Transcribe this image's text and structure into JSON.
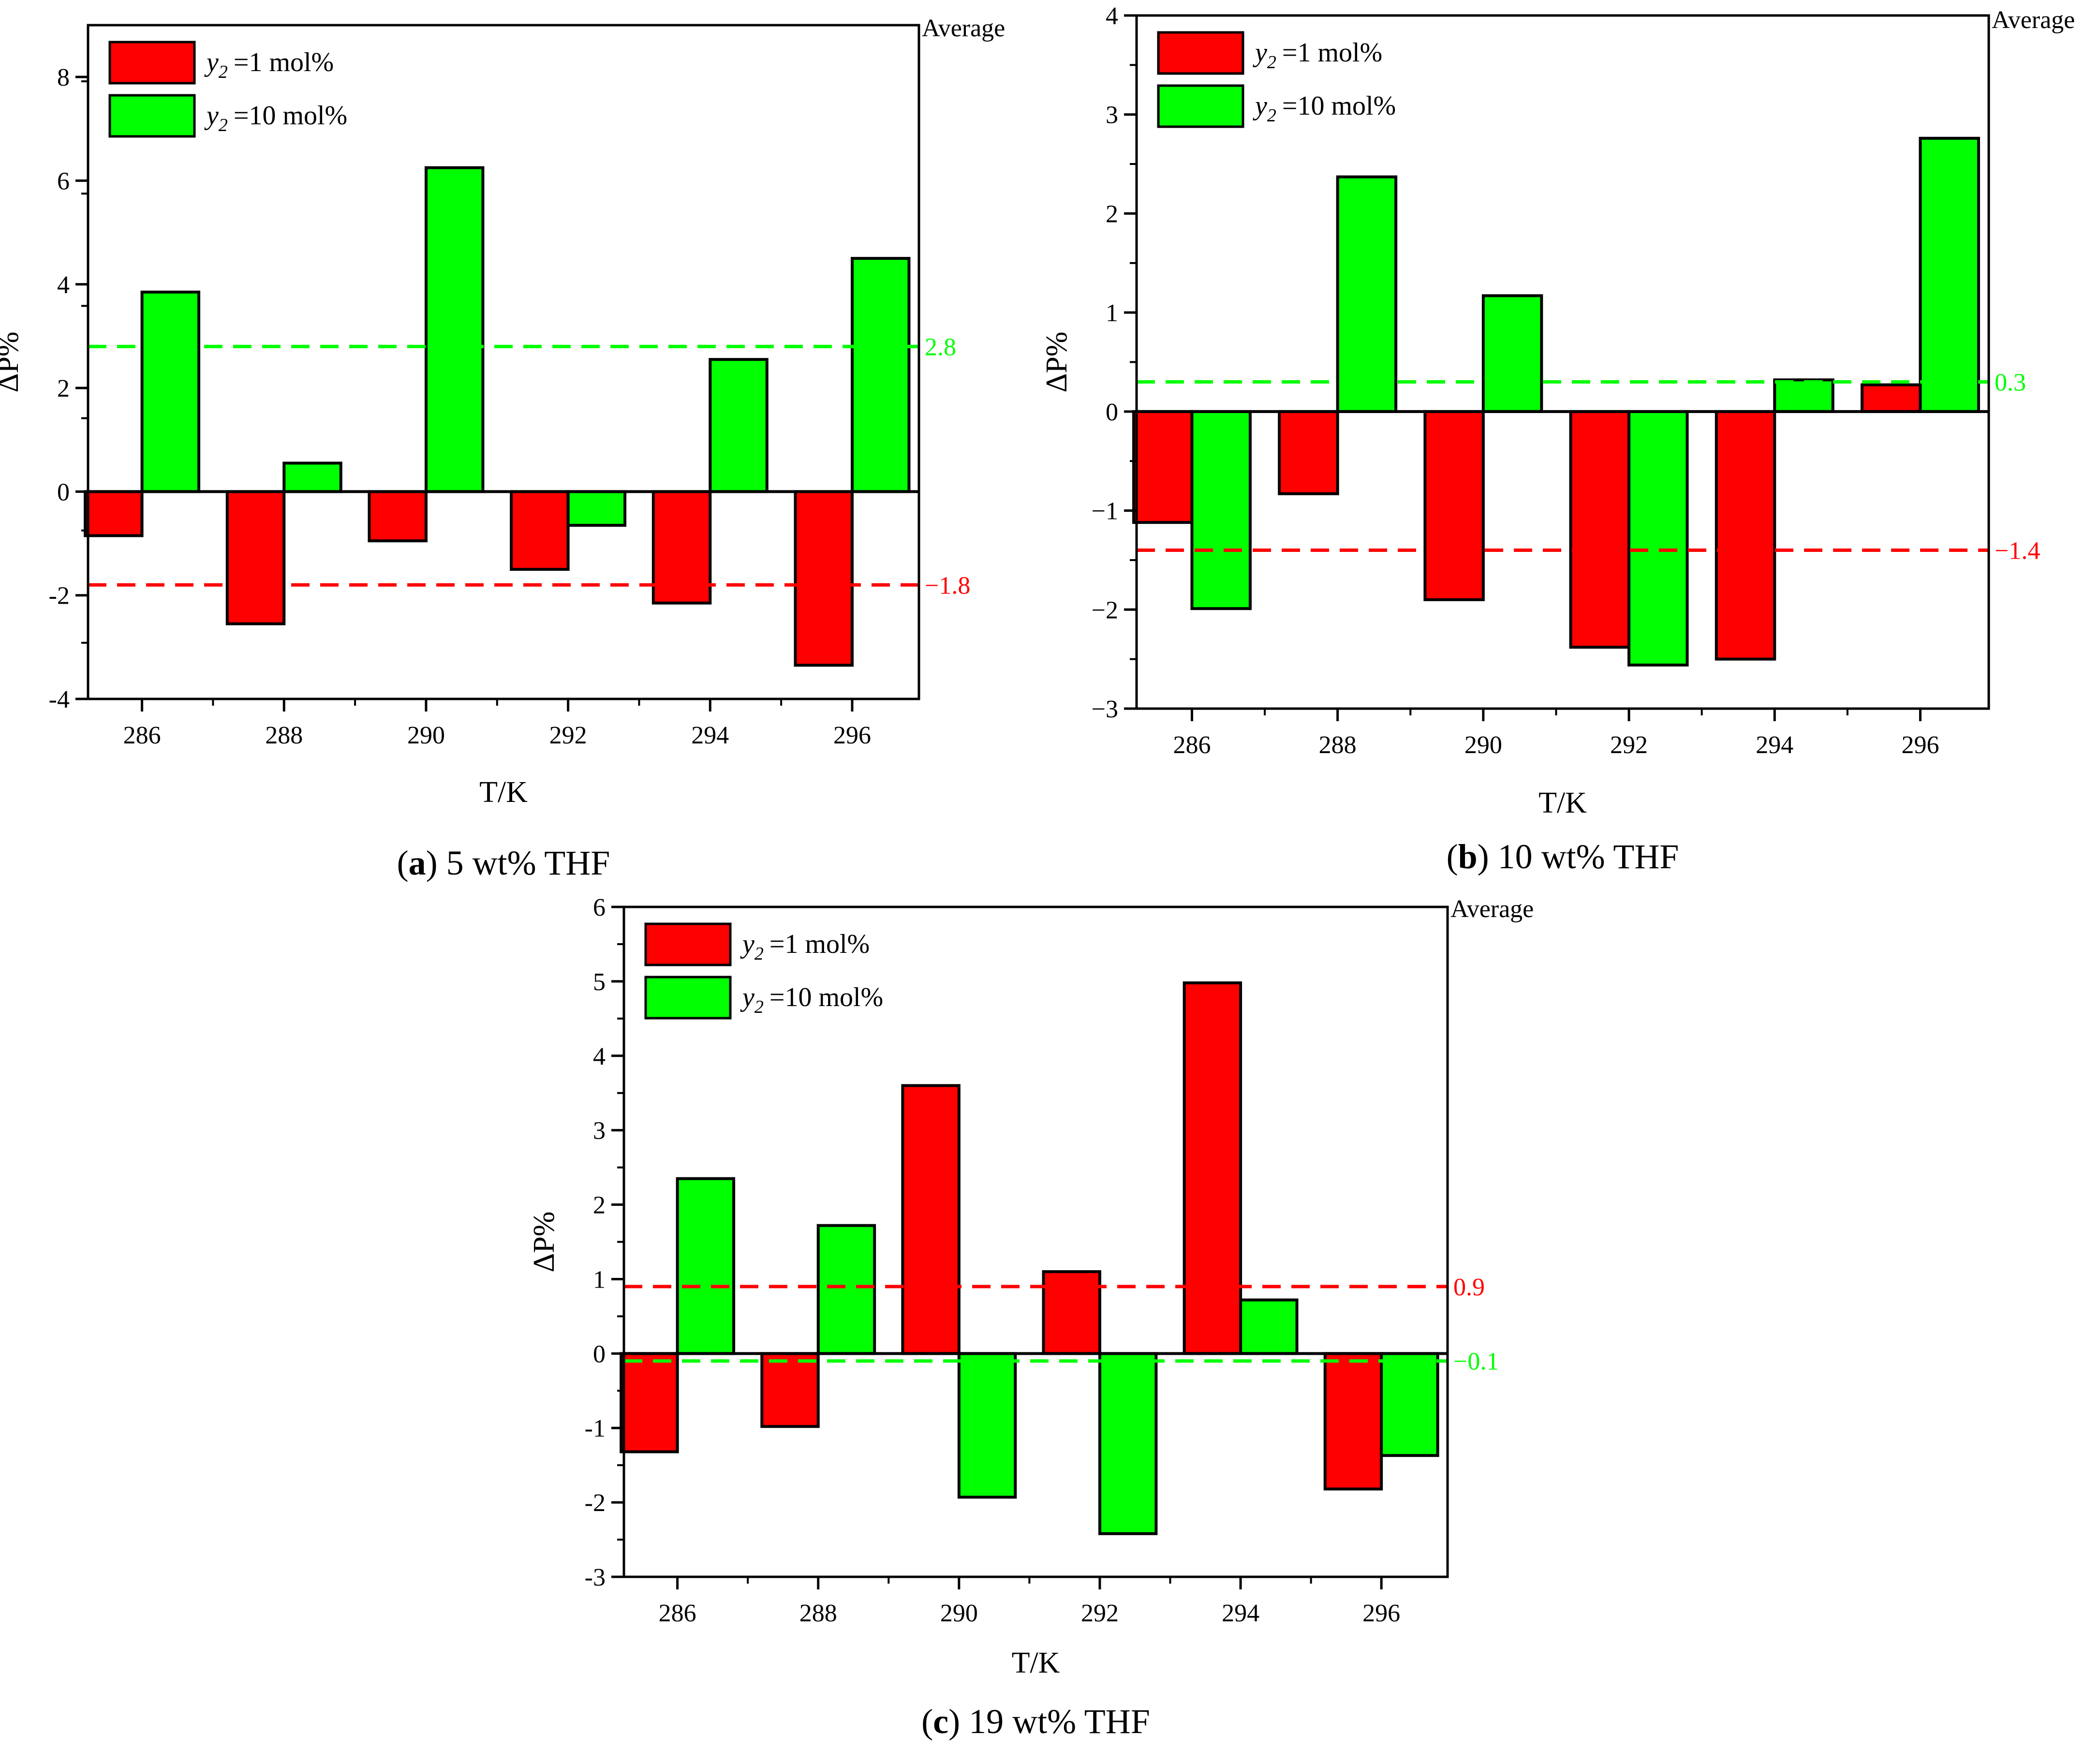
{
  "legend": {
    "series1": "=1 mol%",
    "series2": "=10 mol%",
    "symbol": "y",
    "subscript": "2"
  },
  "colors": {
    "series1": "#ff0000",
    "series2": "#00ff00"
  },
  "chart_data": [
    {
      "type": "bar",
      "caption_letter": "a",
      "caption_rest": " 5 wt% THF",
      "xlabel": "T/K",
      "ylabel": "ΔP%",
      "average_label": "Average",
      "categories": [
        "286",
        "288",
        "290",
        "292",
        "294",
        "296"
      ],
      "ylim": [
        -4,
        9
      ],
      "yticks": [
        "-4",
        "-2",
        "0",
        "2",
        "4",
        "6",
        "8"
      ],
      "legend_placement": "top-left",
      "series": [
        {
          "name": "y2 =1 mol%",
          "values": [
            -0.85,
            -2.55,
            -0.95,
            -1.5,
            -2.15,
            -3.35
          ]
        },
        {
          "name": "y2 =10 mol%",
          "values": [
            3.85,
            0.55,
            6.25,
            -0.65,
            2.55,
            4.5
          ]
        }
      ],
      "averages": [
        {
          "label": "2.8",
          "value": 2.8
        },
        {
          "label": "−1.8",
          "value": -1.8
        }
      ]
    },
    {
      "type": "bar",
      "caption_letter": "b",
      "caption_rest": " 10 wt% THF",
      "xlabel": "T/K",
      "ylabel": "ΔP%",
      "average_label": "Average",
      "categories": [
        "286",
        "288",
        "290",
        "292",
        "294",
        "296"
      ],
      "ylim": [
        -3,
        4
      ],
      "yticks": [
        "−3",
        "−2",
        "−1",
        "0",
        "1",
        "2",
        "3",
        "4"
      ],
      "legend_placement": "top-left",
      "series": [
        {
          "name": "y2 =1 mol%",
          "values": [
            -1.12,
            -0.83,
            -1.9,
            -2.38,
            -2.5,
            0.27
          ]
        },
        {
          "name": "y2 =10 mol%",
          "values": [
            -1.99,
            2.37,
            1.17,
            -2.56,
            0.32,
            2.76
          ]
        }
      ],
      "averages": [
        {
          "label": "0.3",
          "value": 0.3
        },
        {
          "label": "−1.4",
          "value": -1.4
        }
      ]
    },
    {
      "type": "bar",
      "caption_letter": "c",
      "caption_rest": " 19 wt% THF",
      "xlabel": "T/K",
      "ylabel": "ΔP%",
      "average_label": "Average",
      "categories": [
        "286",
        "288",
        "290",
        "292",
        "294",
        "296"
      ],
      "ylim": [
        -3,
        6
      ],
      "yticks": [
        "-3",
        "-2",
        "-1",
        "0",
        "1",
        "2",
        "3",
        "4",
        "5",
        "6"
      ],
      "legend_placement": "top-left",
      "series": [
        {
          "name": "y2 =1 mol%",
          "values": [
            -1.32,
            -0.98,
            3.6,
            1.1,
            4.98,
            -1.82
          ]
        },
        {
          "name": "y2 =10 mol%",
          "values": [
            2.35,
            1.72,
            -1.93,
            -2.42,
            0.72,
            -1.37
          ]
        }
      ],
      "averages": [
        {
          "label": "0.9",
          "value": 0.9
        },
        {
          "label": "−0.1",
          "value": -0.1
        }
      ]
    }
  ]
}
